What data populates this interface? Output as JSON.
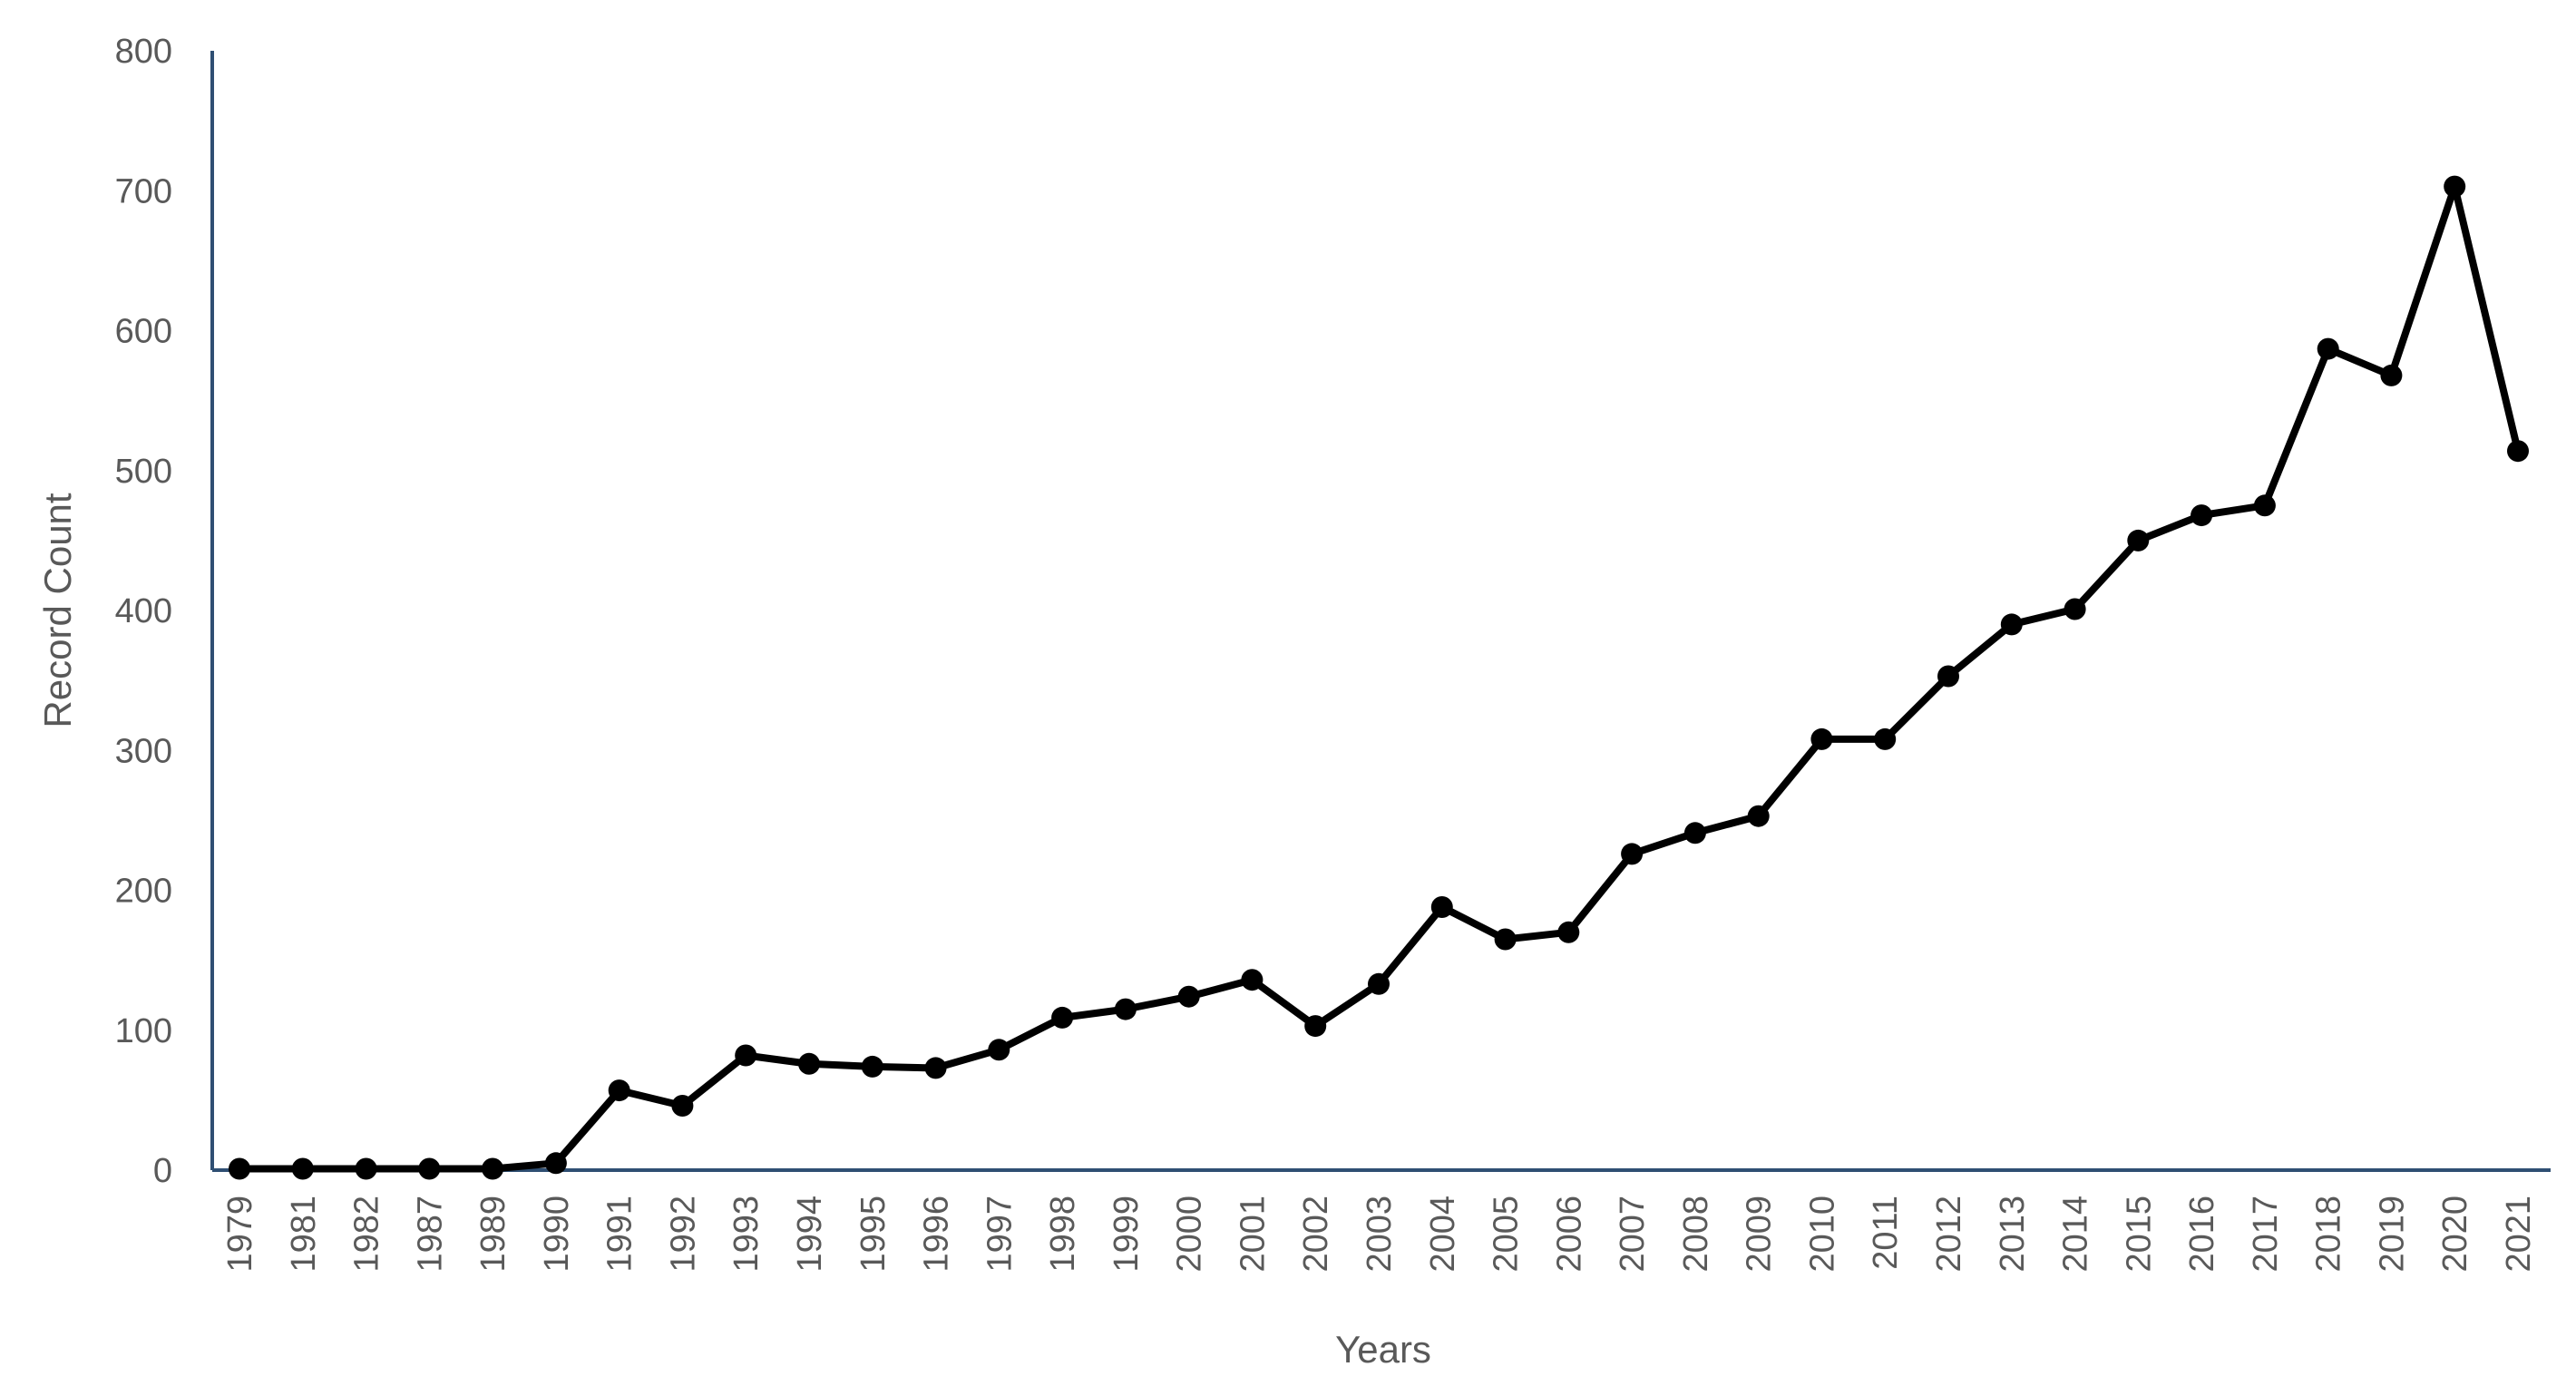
{
  "chart_data": {
    "type": "line",
    "title": "",
    "xlabel": "Years",
    "ylabel": "Record Count",
    "ylim": [
      0,
      800
    ],
    "yticks": [
      0,
      100,
      200,
      300,
      400,
      500,
      600,
      700,
      800
    ],
    "grid": false,
    "legend": "none",
    "categories": [
      "1979",
      "1981",
      "1982",
      "1987",
      "1989",
      "1990",
      "1991",
      "1992",
      "1993",
      "1994",
      "1995",
      "1996",
      "1997",
      "1998",
      "1999",
      "2000",
      "2001",
      "2002",
      "2003",
      "2004",
      "2005",
      "2006",
      "2007",
      "2008",
      "2009",
      "2010",
      "2011",
      "2012",
      "2013",
      "2014",
      "2015",
      "2016",
      "2017",
      "2018",
      "2019",
      "2020",
      "2021"
    ],
    "series": [
      {
        "color": "#000000",
        "values": [
          1,
          1,
          1,
          1,
          1,
          5,
          57,
          46,
          82,
          76,
          74,
          73,
          86,
          109,
          115,
          124,
          136,
          103,
          133,
          188,
          165,
          170,
          226,
          241,
          253,
          308,
          308,
          353,
          390,
          401,
          450,
          468,
          475,
          587,
          568,
          703,
          514
        ]
      }
    ],
    "colors": {
      "axis": "#2f4f73",
      "text": "#595959",
      "series": "#000000"
    }
  }
}
